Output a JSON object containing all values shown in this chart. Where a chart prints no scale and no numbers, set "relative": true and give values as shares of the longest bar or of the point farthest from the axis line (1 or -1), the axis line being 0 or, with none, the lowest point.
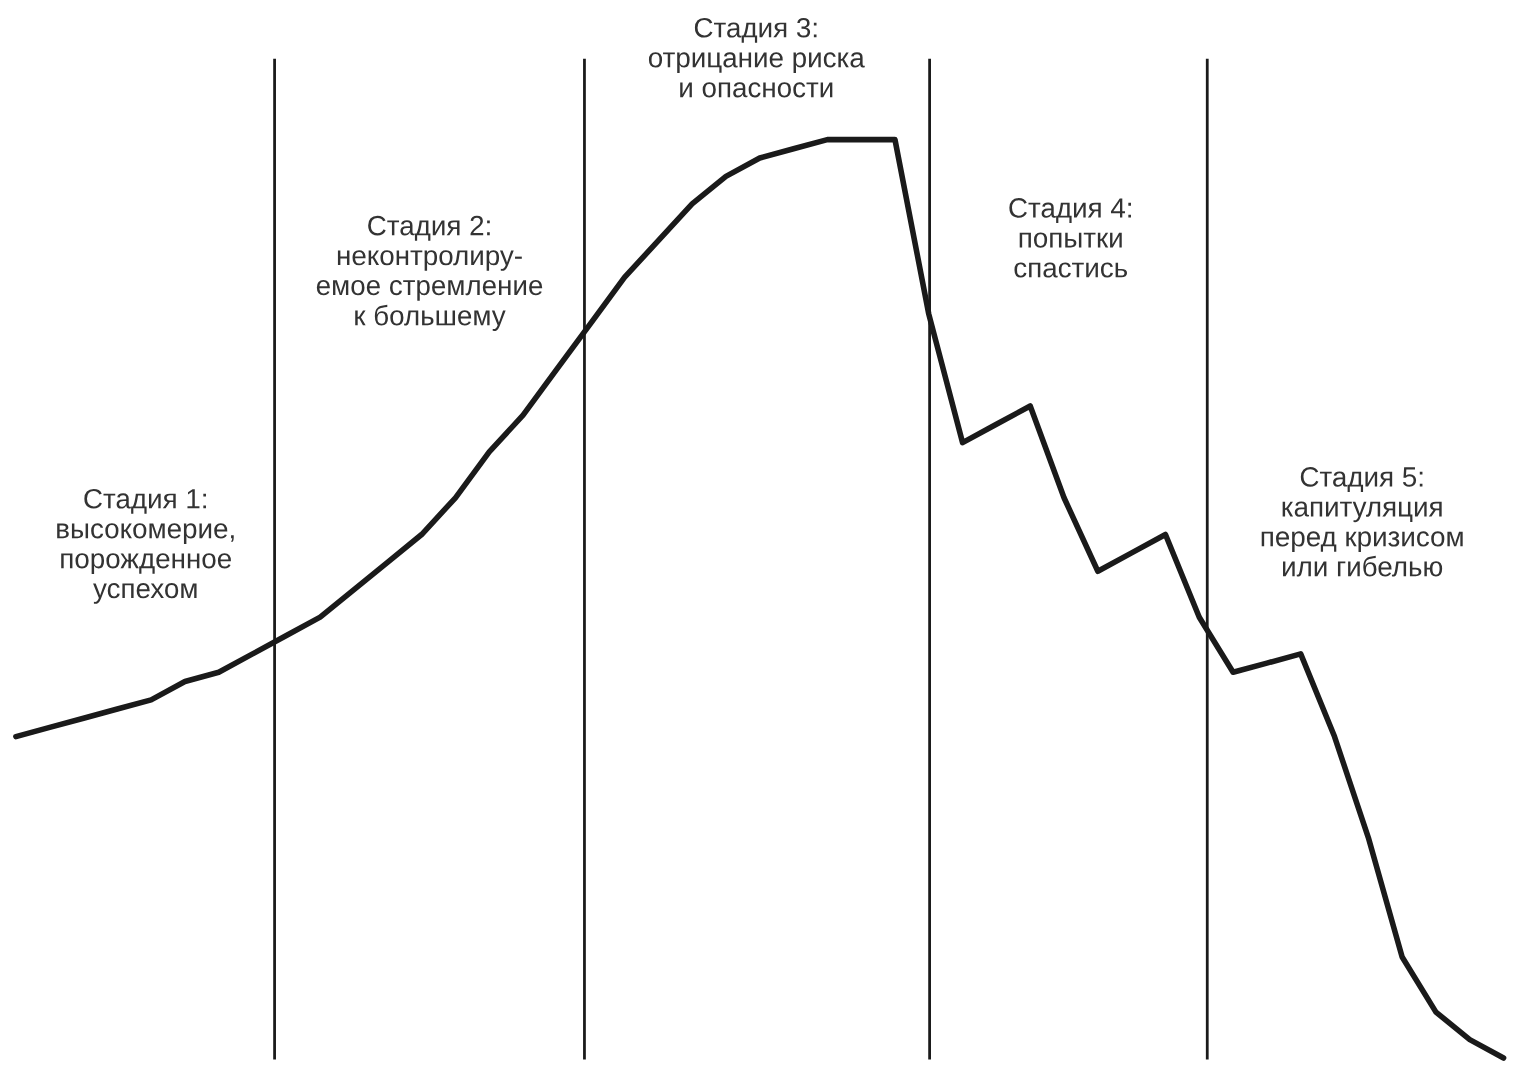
{
  "chart_data": {
    "type": "line",
    "relative": true,
    "marker": "none",
    "line_style": "solid",
    "categories": [
      null,
      null,
      null,
      null,
      null,
      null,
      null,
      null,
      null,
      null,
      null,
      null,
      null,
      null,
      null,
      null,
      null,
      null,
      null,
      null,
      null,
      null,
      null,
      null,
      null,
      null,
      null,
      null,
      null,
      null,
      null,
      null,
      null,
      null,
      null,
      null,
      null,
      null,
      null,
      null,
      null,
      null,
      null,
      null,
      null
    ],
    "series": [
      {
        "color": "#1a1a1a",
        "values": [
          0.35,
          0.36,
          0.37,
          0.38,
          0.39,
          0.41,
          0.42,
          0.44,
          0.46,
          0.48,
          0.51,
          0.54,
          0.57,
          0.61,
          0.66,
          0.7,
          0.75,
          0.8,
          0.85,
          0.89,
          0.93,
          0.96,
          0.98,
          0.99,
          1.0,
          1.0,
          1.0,
          0.81,
          0.67,
          0.69,
          0.71,
          0.61,
          0.53,
          0.55,
          0.57,
          0.48,
          0.42,
          0.43,
          0.44,
          0.35,
          0.24,
          0.11,
          0.05,
          0.02,
          0
        ]
      }
    ],
    "annotations": [
      "Стадия 1:\nвысокомерие,\nпорожденное\nуспехом",
      "Стадия 2:\nнеконтролиру-\nемое стремление\nк большему",
      "Стадия 3:\nотрицание риска\nи опасности",
      "Стадия 4:\nпопытки\nспастись",
      "Стадия 5:\nкапитуляция\nперед кризисом\nили гибелью"
    ]
  }
}
